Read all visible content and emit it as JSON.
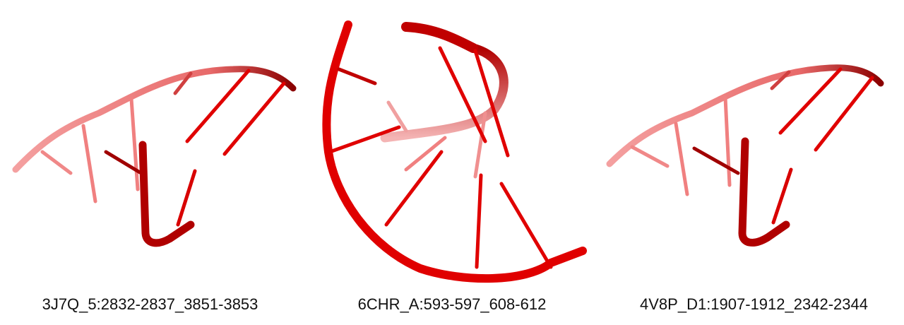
{
  "panels": [
    {
      "label": "3J7Q_5:2832-2837_3851-3853"
    },
    {
      "label": "6CHR_A:593-597_608-612"
    },
    {
      "label": "4V8P_D1:1907-1912_2342-2344"
    }
  ],
  "colors": {
    "strand": "#e00000",
    "strand_dark": "#a80000",
    "strand_faded": "#f08080"
  }
}
